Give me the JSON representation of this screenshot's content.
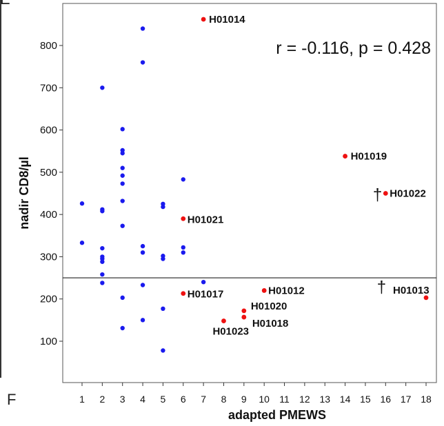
{
  "panel_letters": {
    "top": "E",
    "bottom": "F"
  },
  "chart_data": {
    "type": "scatter",
    "xlabel": "adapted PMEWS",
    "ylabel": "nadir CD8/µl",
    "annotation": "r = -0.116, p = 0.428",
    "xlim": [
      0,
      19
    ],
    "ylim": [
      0,
      900
    ],
    "xticks": [
      1,
      2,
      3,
      4,
      5,
      6,
      7,
      8,
      9,
      10,
      11,
      12,
      13,
      14,
      15,
      16,
      17,
      18
    ],
    "yticks": [
      100,
      200,
      300,
      400,
      500,
      600,
      700,
      800
    ],
    "reference_line_y": 250,
    "colors": {
      "blue": "#1a1aee",
      "red": "#ee1111"
    },
    "series": [
      {
        "color": "blue",
        "points": [
          [
            1,
            426
          ],
          [
            1,
            333
          ],
          [
            2,
            700
          ],
          [
            2,
            412
          ],
          [
            2,
            408
          ],
          [
            2,
            320
          ],
          [
            2,
            300
          ],
          [
            2,
            295
          ],
          [
            2,
            288
          ],
          [
            2,
            258
          ],
          [
            2,
            238
          ],
          [
            3,
            602
          ],
          [
            3,
            552
          ],
          [
            3,
            545
          ],
          [
            3,
            510
          ],
          [
            3,
            492
          ],
          [
            3,
            473
          ],
          [
            3,
            432
          ],
          [
            3,
            373
          ],
          [
            3,
            203
          ],
          [
            3,
            131
          ],
          [
            4,
            840
          ],
          [
            4,
            760
          ],
          [
            4,
            325
          ],
          [
            4,
            310
          ],
          [
            4,
            233
          ],
          [
            4,
            150
          ],
          [
            5,
            425
          ],
          [
            5,
            418
          ],
          [
            5,
            302
          ],
          [
            5,
            295
          ],
          [
            5,
            177
          ],
          [
            5,
            78
          ],
          [
            6,
            483
          ],
          [
            6,
            322
          ],
          [
            6,
            310
          ],
          [
            7,
            240
          ]
        ]
      },
      {
        "color": "red",
        "points": [
          {
            "x": 7,
            "y": 862,
            "label": "H01014"
          },
          {
            "x": 14,
            "y": 538,
            "label": "H01019"
          },
          {
            "x": 16,
            "y": 450,
            "label": "H01022"
          },
          {
            "x": 6,
            "y": 390,
            "label": "H01021"
          },
          {
            "x": 6,
            "y": 213,
            "label": "H01017"
          },
          {
            "x": 10,
            "y": 220,
            "label": "H01012"
          },
          {
            "x": 9,
            "y": 172,
            "label": "H01020"
          },
          {
            "x": 9,
            "y": 157,
            "label": "H01018"
          },
          {
            "x": 8,
            "y": 148,
            "label": "H01023"
          },
          {
            "x": 18,
            "y": 203,
            "label": "H01013"
          }
        ]
      }
    ],
    "dagger_markers": [
      {
        "x": 15.6,
        "y": 448,
        "symbol": "†"
      },
      {
        "x": 15.8,
        "y": 230,
        "symbol": "†"
      }
    ]
  }
}
